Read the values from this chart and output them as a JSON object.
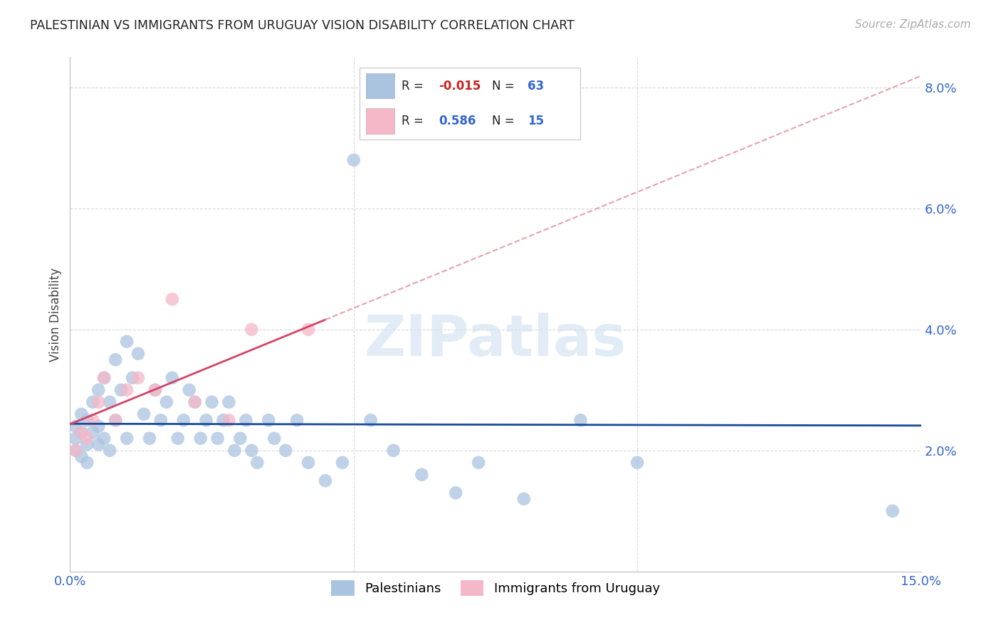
{
  "title": "PALESTINIAN VS IMMIGRANTS FROM URUGUAY VISION DISABILITY CORRELATION CHART",
  "source": "Source: ZipAtlas.com",
  "ylabel": "Vision Disability",
  "xlim": [
    0.0,
    0.15
  ],
  "ylim": [
    0.0,
    0.085
  ],
  "blue_R": -0.015,
  "blue_N": 63,
  "pink_R": 0.586,
  "pink_N": 15,
  "blue_color": "#aac4e0",
  "pink_color": "#f5b8c8",
  "blue_line_color": "#1a4a9a",
  "pink_line_color": "#d44466",
  "pink_dash_color": "#e8a0b0",
  "grid_color": "#d8d8d8",
  "pal_x": [
    0.001,
    0.001,
    0.001,
    0.002,
    0.002,
    0.002,
    0.003,
    0.003,
    0.003,
    0.004,
    0.004,
    0.005,
    0.005,
    0.005,
    0.006,
    0.006,
    0.007,
    0.007,
    0.008,
    0.008,
    0.009,
    0.01,
    0.01,
    0.011,
    0.012,
    0.013,
    0.014,
    0.015,
    0.016,
    0.017,
    0.018,
    0.019,
    0.02,
    0.021,
    0.022,
    0.023,
    0.024,
    0.025,
    0.026,
    0.027,
    0.028,
    0.029,
    0.03,
    0.031,
    0.032,
    0.033,
    0.035,
    0.036,
    0.038,
    0.04,
    0.042,
    0.045,
    0.048,
    0.05,
    0.053,
    0.057,
    0.062,
    0.068,
    0.072,
    0.08,
    0.09,
    0.1,
    0.145
  ],
  "pal_y": [
    0.024,
    0.022,
    0.02,
    0.026,
    0.023,
    0.019,
    0.025,
    0.021,
    0.018,
    0.028,
    0.023,
    0.03,
    0.024,
    0.021,
    0.032,
    0.022,
    0.028,
    0.02,
    0.035,
    0.025,
    0.03,
    0.038,
    0.022,
    0.032,
    0.036,
    0.026,
    0.022,
    0.03,
    0.025,
    0.028,
    0.032,
    0.022,
    0.025,
    0.03,
    0.028,
    0.022,
    0.025,
    0.028,
    0.022,
    0.025,
    0.028,
    0.02,
    0.022,
    0.025,
    0.02,
    0.018,
    0.025,
    0.022,
    0.02,
    0.025,
    0.018,
    0.015,
    0.018,
    0.068,
    0.025,
    0.02,
    0.016,
    0.013,
    0.018,
    0.012,
    0.025,
    0.018,
    0.01
  ],
  "uru_x": [
    0.001,
    0.002,
    0.003,
    0.004,
    0.005,
    0.006,
    0.008,
    0.01,
    0.012,
    0.015,
    0.018,
    0.022,
    0.028,
    0.032,
    0.042
  ],
  "uru_y": [
    0.02,
    0.023,
    0.022,
    0.025,
    0.028,
    0.032,
    0.025,
    0.03,
    0.032,
    0.03,
    0.045,
    0.028,
    0.025,
    0.04,
    0.04
  ]
}
